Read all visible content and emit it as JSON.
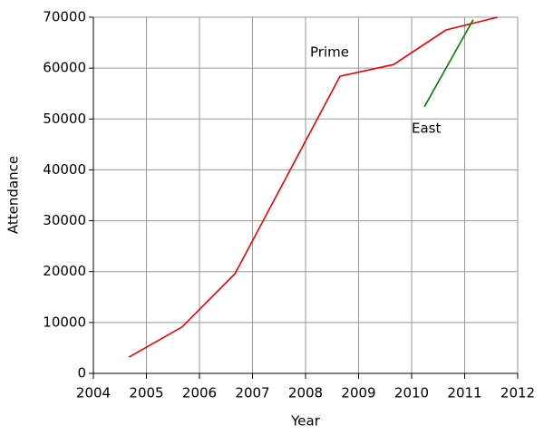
{
  "chart_data": {
    "type": "line",
    "xlabel": "Year",
    "ylabel": "Attendance",
    "series": [
      {
        "name": "Prime",
        "color": "#ee0000",
        "x": [
          2004.67,
          2005.67,
          2006.67,
          2008.65,
          2009.66,
          2010.65,
          2011.62
        ],
        "values": [
          3200,
          9100,
          19600,
          58400,
          60700,
          67500,
          70000
        ]
      },
      {
        "name": "East",
        "color": "#008000",
        "x": [
          2010.24,
          2011.16
        ],
        "values": [
          52400,
          69500
        ]
      }
    ],
    "xlim": [
      2004,
      2012
    ],
    "xticks": [
      2004,
      2005,
      2006,
      2007,
      2008,
      2009,
      2010,
      2011,
      2012
    ],
    "ylim": [
      0,
      70000
    ],
    "yticks": [
      0,
      10000,
      20000,
      30000,
      40000,
      50000,
      60000,
      70000
    ],
    "grid": true
  }
}
